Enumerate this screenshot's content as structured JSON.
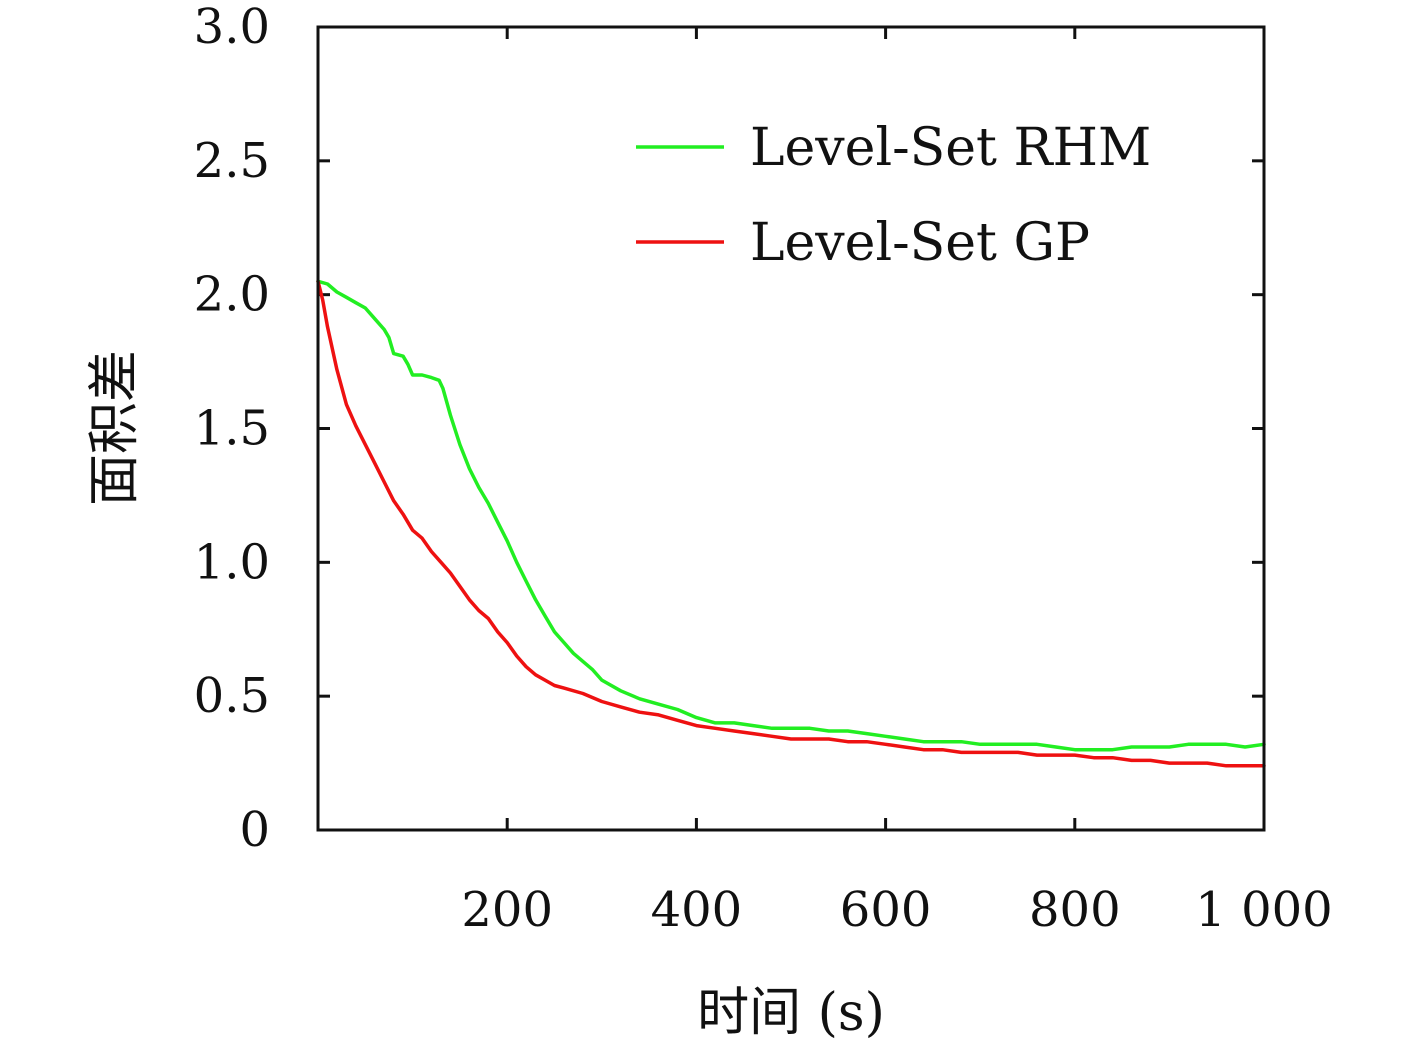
{
  "chart_data": {
    "type": "line",
    "title": "",
    "xlabel": "时间 (s)",
    "ylabel": "面积差",
    "xlim": [
      0,
      1000
    ],
    "ylim": [
      0,
      3.0
    ],
    "xticks": [
      {
        "value": 200,
        "label": "200"
      },
      {
        "value": 400,
        "label": "400"
      },
      {
        "value": 600,
        "label": "600"
      },
      {
        "value": 800,
        "label": "800"
      },
      {
        "value": 1000,
        "label": "1 000"
      }
    ],
    "yticks": [
      {
        "value": 0,
        "label": "0"
      },
      {
        "value": 0.5,
        "label": "0.5"
      },
      {
        "value": 1.0,
        "label": "1.0"
      },
      {
        "value": 1.5,
        "label": "1.5"
      },
      {
        "value": 2.0,
        "label": "2.0"
      },
      {
        "value": 2.5,
        "label": "2.5"
      },
      {
        "value": 3.0,
        "label": "3.0"
      }
    ],
    "grid": false,
    "legend_position": "top-right",
    "series": [
      {
        "name": "Level-Set RHM",
        "color": "#22ee22",
        "points": [
          [
            0,
            2.05
          ],
          [
            10,
            2.04
          ],
          [
            20,
            2.01
          ],
          [
            30,
            1.99
          ],
          [
            40,
            1.97
          ],
          [
            50,
            1.95
          ],
          [
            60,
            1.91
          ],
          [
            70,
            1.87
          ],
          [
            75,
            1.84
          ],
          [
            80,
            1.78
          ],
          [
            90,
            1.77
          ],
          [
            95,
            1.74
          ],
          [
            100,
            1.7
          ],
          [
            110,
            1.7
          ],
          [
            120,
            1.69
          ],
          [
            128,
            1.68
          ],
          [
            132,
            1.65
          ],
          [
            140,
            1.55
          ],
          [
            150,
            1.44
          ],
          [
            160,
            1.35
          ],
          [
            170,
            1.28
          ],
          [
            180,
            1.22
          ],
          [
            190,
            1.15
          ],
          [
            200,
            1.08
          ],
          [
            210,
            1.0
          ],
          [
            220,
            0.93
          ],
          [
            230,
            0.86
          ],
          [
            240,
            0.8
          ],
          [
            250,
            0.74
          ],
          [
            260,
            0.7
          ],
          [
            270,
            0.66
          ],
          [
            280,
            0.63
          ],
          [
            290,
            0.6
          ],
          [
            300,
            0.56
          ],
          [
            320,
            0.52
          ],
          [
            340,
            0.49
          ],
          [
            360,
            0.47
          ],
          [
            380,
            0.45
          ],
          [
            400,
            0.42
          ],
          [
            420,
            0.4
          ],
          [
            440,
            0.4
          ],
          [
            460,
            0.39
          ],
          [
            480,
            0.38
          ],
          [
            500,
            0.38
          ],
          [
            520,
            0.38
          ],
          [
            540,
            0.37
          ],
          [
            560,
            0.37
          ],
          [
            580,
            0.36
          ],
          [
            600,
            0.35
          ],
          [
            620,
            0.34
          ],
          [
            640,
            0.33
          ],
          [
            660,
            0.33
          ],
          [
            680,
            0.33
          ],
          [
            700,
            0.32
          ],
          [
            720,
            0.32
          ],
          [
            740,
            0.32
          ],
          [
            760,
            0.32
          ],
          [
            780,
            0.31
          ],
          [
            800,
            0.3
          ],
          [
            820,
            0.3
          ],
          [
            840,
            0.3
          ],
          [
            860,
            0.31
          ],
          [
            880,
            0.31
          ],
          [
            900,
            0.31
          ],
          [
            920,
            0.32
          ],
          [
            940,
            0.32
          ],
          [
            960,
            0.32
          ],
          [
            980,
            0.31
          ],
          [
            1000,
            0.32
          ]
        ]
      },
      {
        "name": "Level-Set GP",
        "color": "#ee1111",
        "points": [
          [
            0,
            2.05
          ],
          [
            5,
            1.98
          ],
          [
            10,
            1.88
          ],
          [
            20,
            1.72
          ],
          [
            30,
            1.59
          ],
          [
            40,
            1.51
          ],
          [
            50,
            1.44
          ],
          [
            60,
            1.37
          ],
          [
            70,
            1.3
          ],
          [
            80,
            1.23
          ],
          [
            90,
            1.18
          ],
          [
            100,
            1.12
          ],
          [
            110,
            1.09
          ],
          [
            120,
            1.04
          ],
          [
            130,
            1.0
          ],
          [
            140,
            0.96
          ],
          [
            150,
            0.91
          ],
          [
            160,
            0.86
          ],
          [
            170,
            0.82
          ],
          [
            180,
            0.79
          ],
          [
            190,
            0.74
          ],
          [
            200,
            0.7
          ],
          [
            210,
            0.65
          ],
          [
            220,
            0.61
          ],
          [
            230,
            0.58
          ],
          [
            240,
            0.56
          ],
          [
            250,
            0.54
          ],
          [
            260,
            0.53
          ],
          [
            280,
            0.51
          ],
          [
            300,
            0.48
          ],
          [
            320,
            0.46
          ],
          [
            340,
            0.44
          ],
          [
            360,
            0.43
          ],
          [
            380,
            0.41
          ],
          [
            400,
            0.39
          ],
          [
            420,
            0.38
          ],
          [
            440,
            0.37
          ],
          [
            460,
            0.36
          ],
          [
            480,
            0.35
          ],
          [
            500,
            0.34
          ],
          [
            520,
            0.34
          ],
          [
            540,
            0.34
          ],
          [
            560,
            0.33
          ],
          [
            580,
            0.33
          ],
          [
            600,
            0.32
          ],
          [
            620,
            0.31
          ],
          [
            640,
            0.3
          ],
          [
            660,
            0.3
          ],
          [
            680,
            0.29
          ],
          [
            700,
            0.29
          ],
          [
            720,
            0.29
          ],
          [
            740,
            0.29
          ],
          [
            760,
            0.28
          ],
          [
            780,
            0.28
          ],
          [
            800,
            0.28
          ],
          [
            820,
            0.27
          ],
          [
            840,
            0.27
          ],
          [
            860,
            0.26
          ],
          [
            880,
            0.26
          ],
          [
            900,
            0.25
          ],
          [
            920,
            0.25
          ],
          [
            940,
            0.25
          ],
          [
            960,
            0.24
          ],
          [
            980,
            0.24
          ],
          [
            1000,
            0.24
          ]
        ]
      }
    ]
  }
}
